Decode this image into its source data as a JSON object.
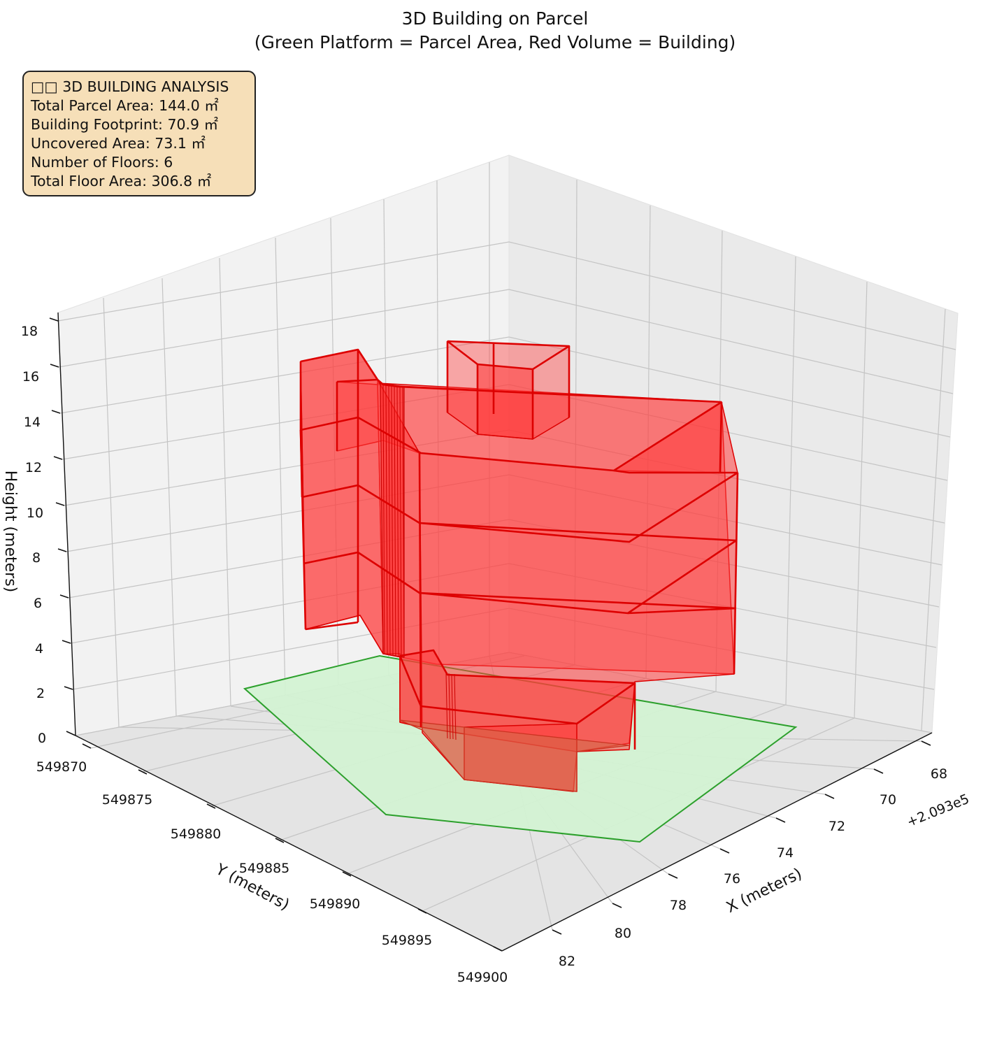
{
  "chart_data": {
    "type": "3d-polygons",
    "title": "3D Building on Parcel",
    "subtitle": "(Green Platform = Parcel Area, Red Volume = Building)",
    "xlabel": "X (meters)",
    "ylabel": "Y (meters)",
    "zlabel": "Height (meters)",
    "x_offset_label": "+2.093e5",
    "x_ticks": [
      "68",
      "70",
      "72",
      "74",
      "76",
      "78",
      "80",
      "82"
    ],
    "y_ticks": [
      "549870",
      "549875",
      "549880",
      "549885",
      "549890",
      "549895",
      "549900"
    ],
    "z_ticks": [
      "0",
      "2",
      "4",
      "6",
      "8",
      "10",
      "12",
      "14",
      "16",
      "18"
    ],
    "colors": {
      "parcel_fill": "#d3f2d3",
      "parcel_edge": "#2ca02c",
      "building_fill": "#ff3b3b",
      "building_edge": "#dd0000"
    },
    "info": {
      "heading": "□□ 3D BUILDING ANALYSIS",
      "total_parcel_area": "Total Parcel Area: 144.0 ㎡",
      "building_footprint": "Building Footprint: 70.9 ㎡",
      "uncovered_area": "Uncovered Area: 73.1 ㎡",
      "number_of_floors": "Number of Floors: 6",
      "total_floor_area": "Total Floor Area: 306.8 ㎡"
    }
  }
}
